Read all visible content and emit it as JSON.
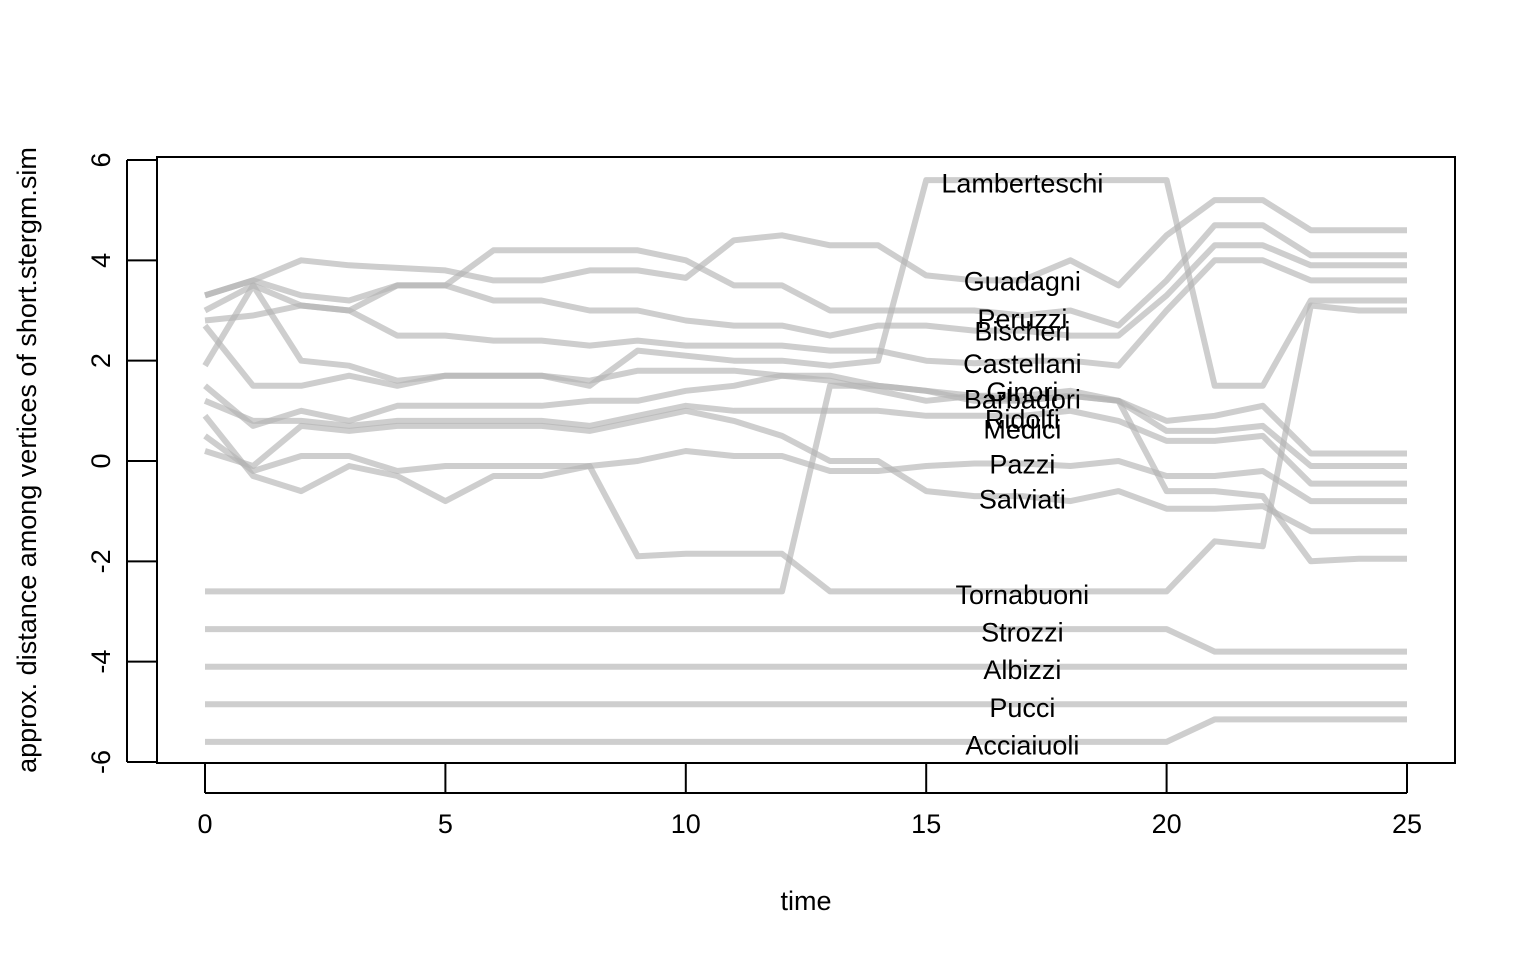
{
  "chart_data": {
    "type": "line",
    "title": "",
    "xlabel": "time",
    "ylabel": "approx. distance among vertices of short.stergm.sim",
    "xlim": [
      0,
      25
    ],
    "ylim": [
      -6,
      6
    ],
    "xticks": [
      0,
      5,
      10,
      15,
      20,
      25
    ],
    "yticks": [
      -6,
      -4,
      -2,
      0,
      2,
      4,
      6
    ],
    "grid": false,
    "legend": "none",
    "line_color": "#b3b3b3",
    "x": [
      0,
      1,
      2,
      3,
      4,
      5,
      6,
      7,
      8,
      9,
      10,
      11,
      12,
      13,
      14,
      15,
      16,
      17,
      18,
      19,
      20,
      21,
      22,
      23,
      24,
      25
    ],
    "label_x": 17,
    "series": [
      {
        "name": "Lamberteschi",
        "label_y": 5.55,
        "values": [
          1.9,
          3.5,
          2.0,
          1.9,
          1.6,
          1.7,
          1.7,
          1.7,
          1.5,
          2.2,
          2.1,
          2.0,
          2.0,
          1.9,
          2.0,
          5.6,
          5.6,
          5.6,
          5.6,
          5.6,
          5.6,
          1.5,
          1.5,
          3.2,
          3.2,
          3.2
        ]
      },
      {
        "name": "Guadagni",
        "label_y": 3.6,
        "values": [
          3.3,
          3.6,
          4.0,
          3.9,
          3.85,
          3.8,
          3.6,
          3.6,
          3.8,
          3.8,
          3.65,
          4.4,
          4.5,
          4.3,
          4.3,
          3.7,
          3.6,
          3.6,
          4.0,
          3.5,
          4.5,
          5.2,
          5.2,
          4.6,
          4.6,
          4.6
        ]
      },
      {
        "name": "Peruzzi",
        "label_y": 2.85,
        "values": [
          3.0,
          3.5,
          3.1,
          3.0,
          3.5,
          3.5,
          4.2,
          4.2,
          4.2,
          4.2,
          4.0,
          3.5,
          3.5,
          3.0,
          3.0,
          3.0,
          3.0,
          2.9,
          3.0,
          2.7,
          3.6,
          4.7,
          4.7,
          4.1,
          4.1,
          4.1
        ]
      },
      {
        "name": "Bischeri",
        "label_y": 2.6,
        "values": [
          3.3,
          3.6,
          3.3,
          3.2,
          3.5,
          3.5,
          3.2,
          3.2,
          3.0,
          3.0,
          2.8,
          2.7,
          2.7,
          2.5,
          2.7,
          2.7,
          2.6,
          2.6,
          2.5,
          2.5,
          3.3,
          4.3,
          4.3,
          3.9,
          3.9,
          3.9
        ]
      },
      {
        "name": "Castellani",
        "label_y": 1.95,
        "values": [
          2.8,
          2.9,
          3.1,
          3.0,
          2.5,
          2.5,
          2.4,
          2.4,
          2.3,
          2.4,
          2.3,
          2.3,
          2.3,
          2.2,
          2.2,
          2.0,
          1.95,
          2.0,
          2.0,
          1.9,
          3.0,
          4.0,
          4.0,
          3.6,
          3.6,
          3.6
        ]
      },
      {
        "name": "Ginori",
        "label_y": 1.4,
        "values": [
          2.7,
          1.5,
          1.5,
          1.7,
          1.5,
          1.7,
          1.7,
          1.7,
          1.6,
          1.8,
          1.8,
          1.8,
          1.7,
          1.6,
          1.4,
          1.2,
          1.3,
          1.2,
          1.3,
          1.2,
          0.8,
          0.9,
          1.1,
          0.15,
          0.15,
          0.15
        ]
      },
      {
        "name": "Barbadori",
        "label_y": 1.25,
        "values": [
          1.5,
          0.7,
          1.0,
          0.8,
          1.1,
          1.1,
          1.1,
          1.1,
          1.2,
          1.2,
          1.4,
          1.5,
          1.7,
          1.7,
          1.5,
          1.4,
          1.3,
          1.3,
          1.4,
          1.2,
          0.6,
          0.6,
          0.7,
          -0.1,
          -0.1,
          -0.1
        ]
      },
      {
        "name": "Ridolfi",
        "label_y": 0.85,
        "values": [
          1.2,
          0.8,
          0.8,
          0.7,
          0.8,
          0.8,
          0.8,
          0.8,
          0.7,
          0.9,
          1.1,
          1.0,
          1.0,
          1.0,
          1.0,
          0.9,
          0.9,
          0.9,
          1.0,
          0.8,
          0.4,
          0.4,
          0.5,
          -0.45,
          -0.45,
          -0.45
        ]
      },
      {
        "name": "Medici",
        "label_y": 0.65,
        "values": [
          0.5,
          -0.2,
          0.1,
          0.1,
          -0.2,
          -0.1,
          -0.1,
          -0.1,
          -0.1,
          -1.9,
          -1.85,
          -1.85,
          -1.85,
          -2.6,
          -2.6,
          -2.6,
          -2.6,
          -2.6,
          -2.6,
          -2.6,
          -2.6,
          -1.6,
          -1.7,
          3.1,
          3.0,
          3.0
        ]
      },
      {
        "name": "Pazzi",
        "label_y": -0.05,
        "values": [
          0.9,
          -0.3,
          -0.6,
          -0.1,
          -0.3,
          -0.8,
          -0.3,
          -0.3,
          -0.1,
          0.0,
          0.2,
          0.1,
          0.1,
          -0.2,
          -0.2,
          -0.1,
          -0.05,
          -0.05,
          -0.1,
          0.0,
          -0.3,
          -0.3,
          -0.2,
          -0.8,
          -0.8,
          -0.8
        ]
      },
      {
        "name": "Salviati",
        "label_y": -0.75,
        "values": [
          0.2,
          -0.1,
          0.7,
          0.6,
          0.7,
          0.7,
          0.7,
          0.7,
          0.6,
          0.8,
          1.0,
          0.8,
          0.5,
          0.0,
          0.0,
          -0.6,
          -0.7,
          -0.7,
          -0.8,
          -0.6,
          -0.95,
          -0.95,
          -0.9,
          -1.4,
          -1.4,
          -1.4
        ]
      },
      {
        "name": "Tornabuoni",
        "label_y": -2.65,
        "values": [
          -2.6,
          -2.6,
          -2.6,
          -2.6,
          -2.6,
          -2.6,
          -2.6,
          -2.6,
          -2.6,
          -2.6,
          -2.6,
          -2.6,
          -2.6,
          1.5,
          1.5,
          1.4,
          1.2,
          1.2,
          1.3,
          1.2,
          -0.6,
          -0.6,
          -0.7,
          -2.0,
          -1.95,
          -1.95
        ]
      },
      {
        "name": "Strozzi",
        "label_y": -3.4,
        "values": [
          -3.35,
          -3.35,
          -3.35,
          -3.35,
          -3.35,
          -3.35,
          -3.35,
          -3.35,
          -3.35,
          -3.35,
          -3.35,
          -3.35,
          -3.35,
          -3.35,
          -3.35,
          -3.35,
          -3.35,
          -3.35,
          -3.35,
          -3.35,
          -3.35,
          -3.8,
          -3.8,
          -3.8,
          -3.8,
          -3.8
        ]
      },
      {
        "name": "Albizzi",
        "label_y": -4.15,
        "values": [
          -4.1,
          -4.1,
          -4.1,
          -4.1,
          -4.1,
          -4.1,
          -4.1,
          -4.1,
          -4.1,
          -4.1,
          -4.1,
          -4.1,
          -4.1,
          -4.1,
          -4.1,
          -4.1,
          -4.1,
          -4.1,
          -4.1,
          -4.1,
          -4.1,
          -4.1,
          -4.1,
          -4.1,
          -4.1,
          -4.1
        ]
      },
      {
        "name": "Pucci",
        "label_y": -4.9,
        "values": [
          -4.85,
          -4.85,
          -4.85,
          -4.85,
          -4.85,
          -4.85,
          -4.85,
          -4.85,
          -4.85,
          -4.85,
          -4.85,
          -4.85,
          -4.85,
          -4.85,
          -4.85,
          -4.85,
          -4.85,
          -4.85,
          -4.85,
          -4.85,
          -4.85,
          -4.85,
          -4.85,
          -4.85,
          -4.85,
          -4.85
        ]
      },
      {
        "name": "Acciaiuoli",
        "label_y": -5.65,
        "values": [
          -5.6,
          -5.6,
          -5.6,
          -5.6,
          -5.6,
          -5.6,
          -5.6,
          -5.6,
          -5.6,
          -5.6,
          -5.6,
          -5.6,
          -5.6,
          -5.6,
          -5.6,
          -5.6,
          -5.6,
          -5.6,
          -5.6,
          -5.6,
          -5.6,
          -5.15,
          -5.15,
          -5.15,
          -5.15,
          -5.15
        ]
      }
    ]
  }
}
